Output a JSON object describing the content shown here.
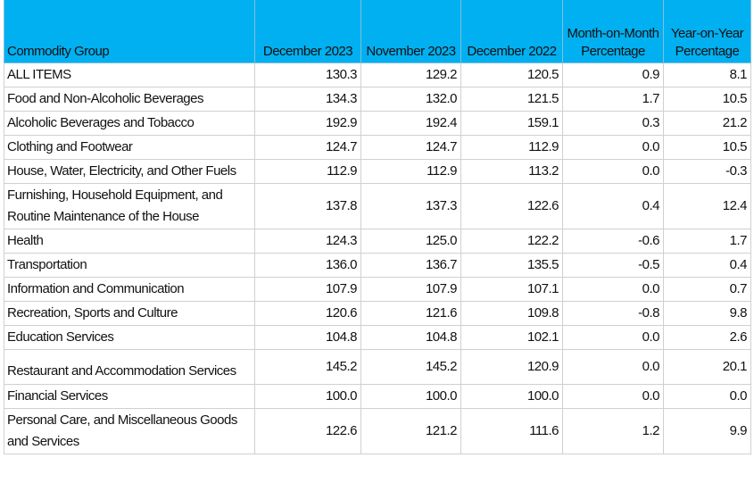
{
  "table": {
    "headers": {
      "commodity_group": "Commodity Group",
      "dec_2023": "December 2023",
      "nov_2023": "November 2023",
      "dec_2022": "December 2022",
      "mom_line1": "Month-on-Month",
      "mom_line2": "Percentage",
      "yoy_line1": "Year-on-Year",
      "yoy_line2": "Percentage"
    },
    "rows": [
      {
        "name": "ALL ITEMS",
        "dec_2023": "130.3",
        "nov_2023": "129.2",
        "dec_2022": "120.5",
        "mom": "0.9",
        "yoy": "8.1"
      },
      {
        "name": "Food and Non-Alcoholic Beverages",
        "dec_2023": "134.3",
        "nov_2023": "132.0",
        "dec_2022": "121.5",
        "mom": "1.7",
        "yoy": "10.5"
      },
      {
        "name": "Alcoholic Beverages and Tobacco",
        "dec_2023": "192.9",
        "nov_2023": "192.4",
        "dec_2022": "159.1",
        "mom": "0.3",
        "yoy": "21.2"
      },
      {
        "name": "Clothing and Footwear",
        "dec_2023": "124.7",
        "nov_2023": "124.7",
        "dec_2022": "112.9",
        "mom": "0.0",
        "yoy": "10.5"
      },
      {
        "name": "House, Water, Electricity, and Other Fuels",
        "dec_2023": "112.9",
        "nov_2023": "112.9",
        "dec_2022": "113.2",
        "mom": "0.0",
        "yoy": "-0.3"
      },
      {
        "name": "Furnishing, Household Equipment, and Routine Maintenance of the House",
        "dec_2023": "137.8",
        "nov_2023": "137.3",
        "dec_2022": "122.6",
        "mom": "0.4",
        "yoy": "12.4"
      },
      {
        "name": "Health",
        "dec_2023": "124.3",
        "nov_2023": "125.0",
        "dec_2022": "122.2",
        "mom": "-0.6",
        "yoy": "1.7"
      },
      {
        "name": "Transportation",
        "dec_2023": "136.0",
        "nov_2023": "136.7",
        "dec_2022": "135.5",
        "mom": "-0.5",
        "yoy": "0.4"
      },
      {
        "name": "Information and Communication",
        "dec_2023": "107.9",
        "nov_2023": "107.9",
        "dec_2022": "107.1",
        "mom": "0.0",
        "yoy": "0.7"
      },
      {
        "name": "Recreation, Sports and Culture",
        "dec_2023": "120.6",
        "nov_2023": "121.6",
        "dec_2022": "109.8",
        "mom": "-0.8",
        "yoy": "9.8"
      },
      {
        "name": "Education Services",
        "dec_2023": "104.8",
        "nov_2023": "104.8",
        "dec_2022": "102.1",
        "mom": "0.0",
        "yoy": "2.6"
      },
      {
        "name": "Restaurant and Accommodation Services",
        "dec_2023": "145.2",
        "nov_2023": "145.2",
        "dec_2022": "120.9",
        "mom": "0.0",
        "yoy": "20.1"
      },
      {
        "name": "Financial Services",
        "dec_2023": "100.0",
        "nov_2023": "100.0",
        "dec_2022": "100.0",
        "mom": "0.0",
        "yoy": "0.0"
      },
      {
        "name": "Personal Care, and Miscellaneous Goods and Services",
        "dec_2023": "122.6",
        "nov_2023": "121.2",
        "dec_2022": "111.6",
        "mom": "1.2",
        "yoy": "9.9"
      }
    ]
  }
}
